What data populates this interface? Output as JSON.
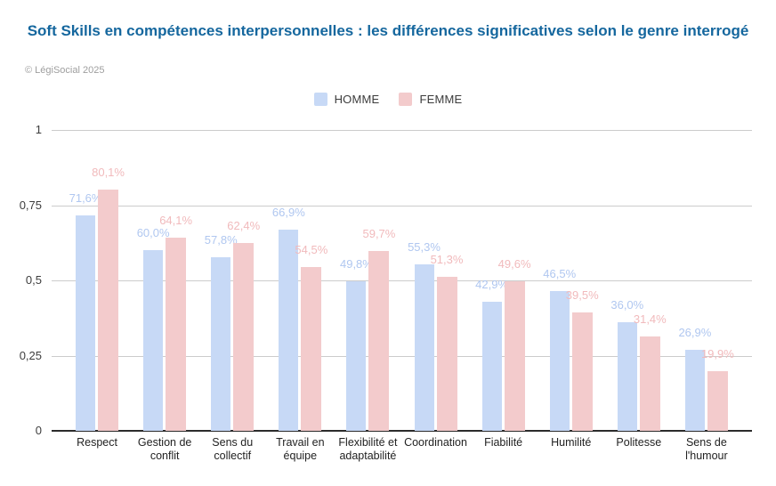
{
  "page": {
    "copyright": "© LégiSocial 2025"
  },
  "colors": {
    "title": "#15679e",
    "grid": "#cccccc",
    "axis": "#2b2b2b",
    "tick_text": "#3d3d3d",
    "category_text": "#222222",
    "legend_text": "#3c3c3c",
    "copyright_text": "#9e9e9e",
    "background": "#ffffff",
    "homme_bar": "#c7d9f6",
    "femme_bar": "#f3cbcc",
    "homme_label": "#b0c7f0",
    "femme_label": "#f1babc"
  },
  "chart_data": {
    "type": "bar",
    "title": "Soft Skills en compétences interpersonnelles : les différences significatives selon le genre interrogé",
    "categories": [
      "Respect",
      "Gestion de conflit",
      "Sens du collectif",
      "Travail en équipe",
      "Flexibilité et adaptabilité",
      "Coordination",
      "Fiabilité",
      "Humilité",
      "Politesse",
      "Sens de l'humour"
    ],
    "series": [
      {
        "name": "HOMME",
        "color": "#c7d9f6",
        "label_color": "#b0c7f0",
        "values": [
          71.6,
          60.0,
          57.8,
          66.9,
          49.8,
          55.3,
          42.9,
          46.5,
          36.0,
          26.9
        ],
        "labels": [
          "71,6%",
          "60,0%",
          "57,8%",
          "66,9%",
          "49,8%",
          "55,3%",
          "42,9%",
          "46,5%",
          "36,0%",
          "26,9%"
        ]
      },
      {
        "name": "FEMME",
        "color": "#f3cbcc",
        "label_color": "#f1babc",
        "values": [
          80.1,
          64.1,
          62.4,
          54.5,
          59.7,
          51.3,
          49.6,
          39.5,
          31.4,
          19.9
        ],
        "labels": [
          "80,1%",
          "64,1%",
          "62,4%",
          "54,5%",
          "59,7%",
          "51,3%",
          "49,6%",
          "39,5%",
          "31,4%",
          "19,9%"
        ]
      }
    ],
    "y_axis": {
      "min": 0,
      "max": 1,
      "ticks": [
        {
          "label": "1",
          "value": 1
        },
        {
          "label": "0,75",
          "value": 0.75
        },
        {
          "label": "0,5",
          "value": 0.5
        },
        {
          "label": "0,25",
          "value": 0.25
        },
        {
          "label": "0",
          "value": 0
        }
      ]
    },
    "ylim": [
      0,
      1
    ],
    "grid": true,
    "legend_position": "top",
    "value_format": "percent-fr"
  }
}
